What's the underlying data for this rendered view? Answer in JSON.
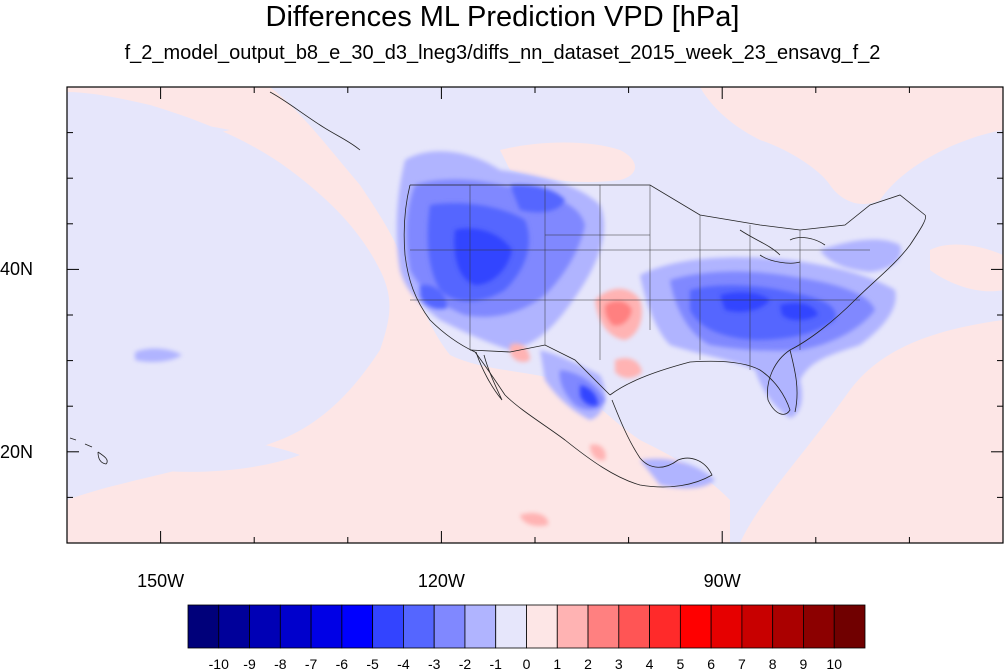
{
  "title": "Differences ML Prediction VPD [hPa]",
  "subtitle": "f_2_model_output_b8_e_30_d3_lneg3/diffs_nn_dataset_2015_week_23_ensavg_f_2",
  "map": {
    "projection": "cylindrical-equidistant",
    "lon_range": [
      -160,
      -60
    ],
    "lat_range": [
      10,
      60
    ],
    "lat_labels": [
      "20N",
      "40N"
    ],
    "lon_labels": [
      "150W",
      "120W",
      "90W"
    ],
    "boundaries": [
      "coastlines",
      "us-state-borders",
      "country-borders"
    ],
    "background_value_color": "#e6e6fb"
  },
  "colorbar": {
    "labels": [
      "-10",
      "-9",
      "-8",
      "-7",
      "-6",
      "-5",
      "-4",
      "-3",
      "-2",
      "-1",
      "0",
      "1",
      "2",
      "3",
      "4",
      "5",
      "6",
      "7",
      "8",
      "9",
      "10"
    ],
    "colors": [
      "#00007a",
      "#00009a",
      "#0000b5",
      "#0000cc",
      "#0000e6",
      "#0000ff",
      "#3344ff",
      "#5566ff",
      "#8088ff",
      "#b0b4ff",
      "#e6e6fb",
      "#fde6e6",
      "#ffb3b3",
      "#ff8080",
      "#ff5555",
      "#ff2a2a",
      "#ff0000",
      "#e60000",
      "#c80000",
      "#aa0000",
      "#8c0000",
      "#700000"
    ]
  }
}
